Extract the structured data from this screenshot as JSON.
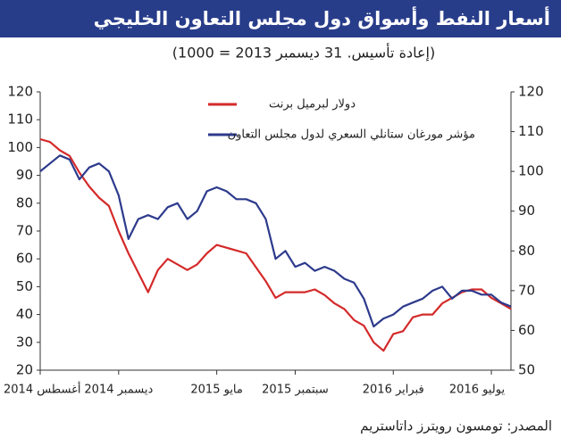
{
  "chart_data": {
    "type": "line",
    "title": "أسعار النفط وأسواق دول مجلس التعاون الخليجي",
    "subtitle": "(إعادة تأسيس. 31 ديسمبر 2013 = 1000)",
    "source": "المصدر: تومسون رويترز داتاستريم",
    "categories": [
      "أغسطس 2014",
      null,
      null,
      null,
      null,
      null,
      null,
      null,
      "ديسمبر 2014",
      null,
      null,
      null,
      null,
      null,
      null,
      null,
      null,
      null,
      "مايو 2015",
      null,
      null,
      null,
      null,
      null,
      null,
      null,
      "سبتمبر 2015",
      null,
      null,
      null,
      null,
      null,
      null,
      null,
      null,
      null,
      "فبراير 2016",
      null,
      null,
      null,
      null,
      null,
      null,
      null,
      null,
      null,
      "يوليو 2016",
      null,
      null
    ],
    "series": [
      {
        "name": "دولار لبرميل برنت",
        "color": "#d42a2a",
        "values": [
          103,
          102,
          99,
          97,
          91,
          86,
          82,
          79,
          70,
          62,
          55,
          48,
          56,
          60,
          58,
          56,
          58,
          62,
          65,
          64,
          63,
          62,
          57,
          52,
          46,
          48,
          48,
          48,
          49,
          47,
          44,
          42,
          38,
          36,
          30,
          27,
          33,
          34,
          39,
          40,
          40,
          44,
          46,
          48,
          49,
          49,
          46,
          44,
          42
        ]
      },
      {
        "name": "مؤشر مورغان ستانلي السعري لدول مجلس التعاون",
        "color": "#2d3a8c",
        "axis": "y2",
        "values": [
          100,
          102,
          104,
          103,
          98,
          101,
          102,
          100,
          94,
          83,
          88,
          89,
          88,
          91,
          92,
          88,
          90,
          95,
          96,
          95,
          93,
          93,
          92,
          88,
          78,
          80,
          76,
          77,
          75,
          76,
          75,
          73,
          72,
          68,
          61,
          63,
          64,
          66,
          67,
          68,
          70,
          71,
          68,
          70,
          70,
          69,
          69,
          67,
          66
        ]
      }
    ],
    "ylim": [
      20,
      120
    ],
    "yticks": [
      20,
      30,
      40,
      50,
      60,
      70,
      80,
      90,
      100,
      110,
      120
    ],
    "y2lim": [
      50,
      120
    ],
    "y2ticks": [
      50,
      60,
      70,
      80,
      90,
      100,
      110,
      120
    ]
  }
}
